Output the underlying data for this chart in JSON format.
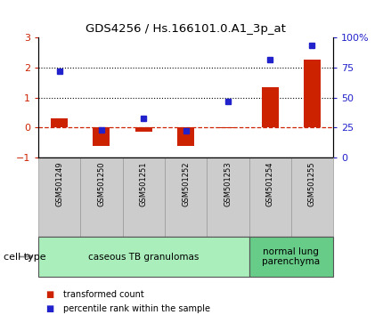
{
  "title": "GDS4256 / Hs.166101.0.A1_3p_at",
  "samples": [
    "GSM501249",
    "GSM501250",
    "GSM501251",
    "GSM501252",
    "GSM501253",
    "GSM501254",
    "GSM501255"
  ],
  "transformed_count": [
    0.32,
    -0.62,
    -0.13,
    -0.62,
    -0.02,
    1.35,
    2.28
  ],
  "percentile_rank_pct": [
    72,
    23,
    33,
    22,
    47,
    82,
    94
  ],
  "ylim_left": [
    -1,
    3
  ],
  "ylim_right": [
    0,
    100
  ],
  "yticks_left": [
    -1,
    0,
    1,
    2,
    3
  ],
  "yticks_right": [
    0,
    25,
    50,
    75,
    100
  ],
  "bar_color": "#cc2200",
  "dot_color": "#2222cc",
  "hline_color": "#cc2200",
  "dotted_lines": [
    2.0,
    1.0
  ],
  "groups": [
    {
      "label": "caseous TB granulomas",
      "samples_idx": [
        0,
        1,
        2,
        3,
        4
      ],
      "color": "#aaeebb"
    },
    {
      "label": "normal lung\nparenchyma",
      "samples_idx": [
        5,
        6
      ],
      "color": "#66cc88"
    }
  ],
  "legend_items": [
    {
      "label": "transformed count",
      "color": "#cc2200"
    },
    {
      "label": "percentile rank within the sample",
      "color": "#2222cc"
    }
  ],
  "cell_type_label": "cell type",
  "tick_box_color": "#cccccc",
  "tick_box_edge": "#999999"
}
